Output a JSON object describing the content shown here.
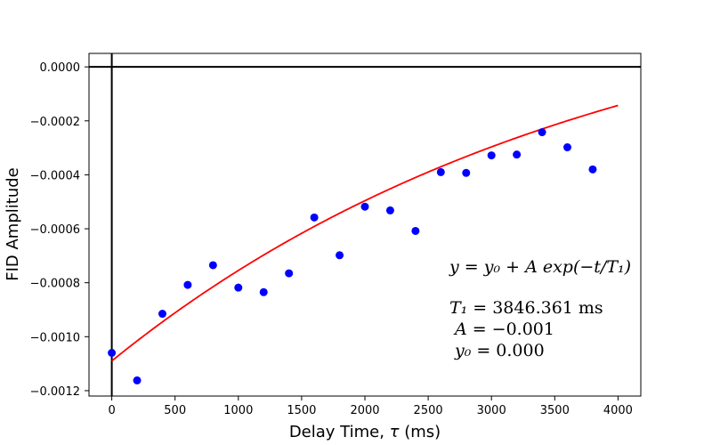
{
  "chart_data": {
    "type": "scatter",
    "title": "",
    "xlabel": "Delay Time, ",
    "xlabel_symbol": "τ",
    "xlabel_unit": " (ms)",
    "ylabel": "FID Amplitude",
    "xlim": [
      -180,
      4180
    ],
    "ylim": [
      -0.00122,
      5e-05
    ],
    "x_ticks": [
      0,
      500,
      1000,
      1500,
      2000,
      2500,
      3000,
      3500,
      4000
    ],
    "x_tick_labels": [
      "0",
      "500",
      "1000",
      "1500",
      "2000",
      "2500",
      "3000",
      "3500",
      "4000"
    ],
    "y_ticks": [
      0.0,
      -0.0002,
      -0.0004,
      -0.0006,
      -0.0008,
      -0.001,
      -0.0012
    ],
    "y_tick_labels": [
      "0.0000",
      "−0.0002",
      "−0.0004",
      "−0.0006",
      "−0.0008",
      "−0.0010",
      "−0.0012"
    ],
    "reference_lines": {
      "x": 0,
      "y": 0
    },
    "grid": false,
    "series": [
      {
        "type": "scatter",
        "color": "#0000ff",
        "x": [
          0,
          200,
          400,
          600,
          800,
          1000,
          1200,
          1400,
          1600,
          1800,
          2000,
          2200,
          2400,
          2600,
          2800,
          3000,
          3200,
          3400,
          3600,
          3800
        ],
        "y": [
          -0.00106,
          -0.001162,
          -0.000915,
          -0.000808,
          -0.000735,
          -0.000818,
          -0.000835,
          -0.000765,
          -0.000558,
          -0.000698,
          -0.000518,
          -0.000532,
          -0.000608,
          -0.00039,
          -0.000393,
          -0.000328,
          -0.000325,
          -0.000242,
          -0.000298,
          -0.00038
        ]
      },
      {
        "type": "line",
        "color": "#ff0000",
        "fit": {
          "y0": 0.000375,
          "A": -0.001465,
          "T1": 3846.361,
          "x_range": [
            0,
            4000
          ]
        }
      }
    ],
    "annotation": {
      "equation": "y = y₀ + A exp(−t/T₁)",
      "t1_name": "T₁",
      "t1_value": "3846.361 ms",
      "a_name": "A",
      "a_value": "−0.001",
      "y0_name": "y₀",
      "y0_value": "0.000",
      "equals": "="
    }
  }
}
